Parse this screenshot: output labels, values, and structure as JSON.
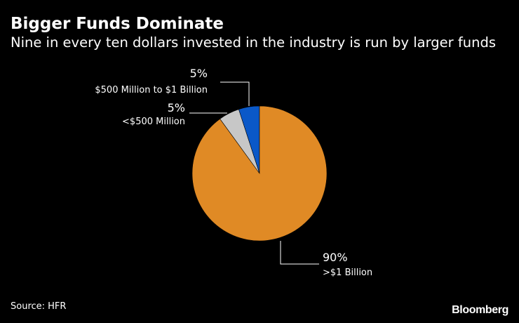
{
  "header": {
    "title": "Bigger Funds Dominate",
    "subtitle": "Nine in every ten dollars invested in the industry is run by larger funds"
  },
  "footer": {
    "source": "Source: HFR",
    "brand": "Bloomberg"
  },
  "chart_data": {
    "type": "pie",
    "title": "Bigger Funds Dominate",
    "subtitle": "Nine in every ten dollars invested in the industry is run by larger funds",
    "start": "12 o'clock, counter-clockwise",
    "slices": [
      {
        "key": "mid",
        "label": "$500 Million to $1 Billion",
        "value": 5,
        "value_label": "5%",
        "color": "#0a58c8"
      },
      {
        "key": "small",
        "label": "<$500 Million",
        "value": 5,
        "value_label": "5%",
        "color": "#c7c7c7"
      },
      {
        "key": "large",
        "label": ">$1 Billion",
        "value": 90,
        "value_label": "90%",
        "color": "#e08a25"
      }
    ]
  }
}
